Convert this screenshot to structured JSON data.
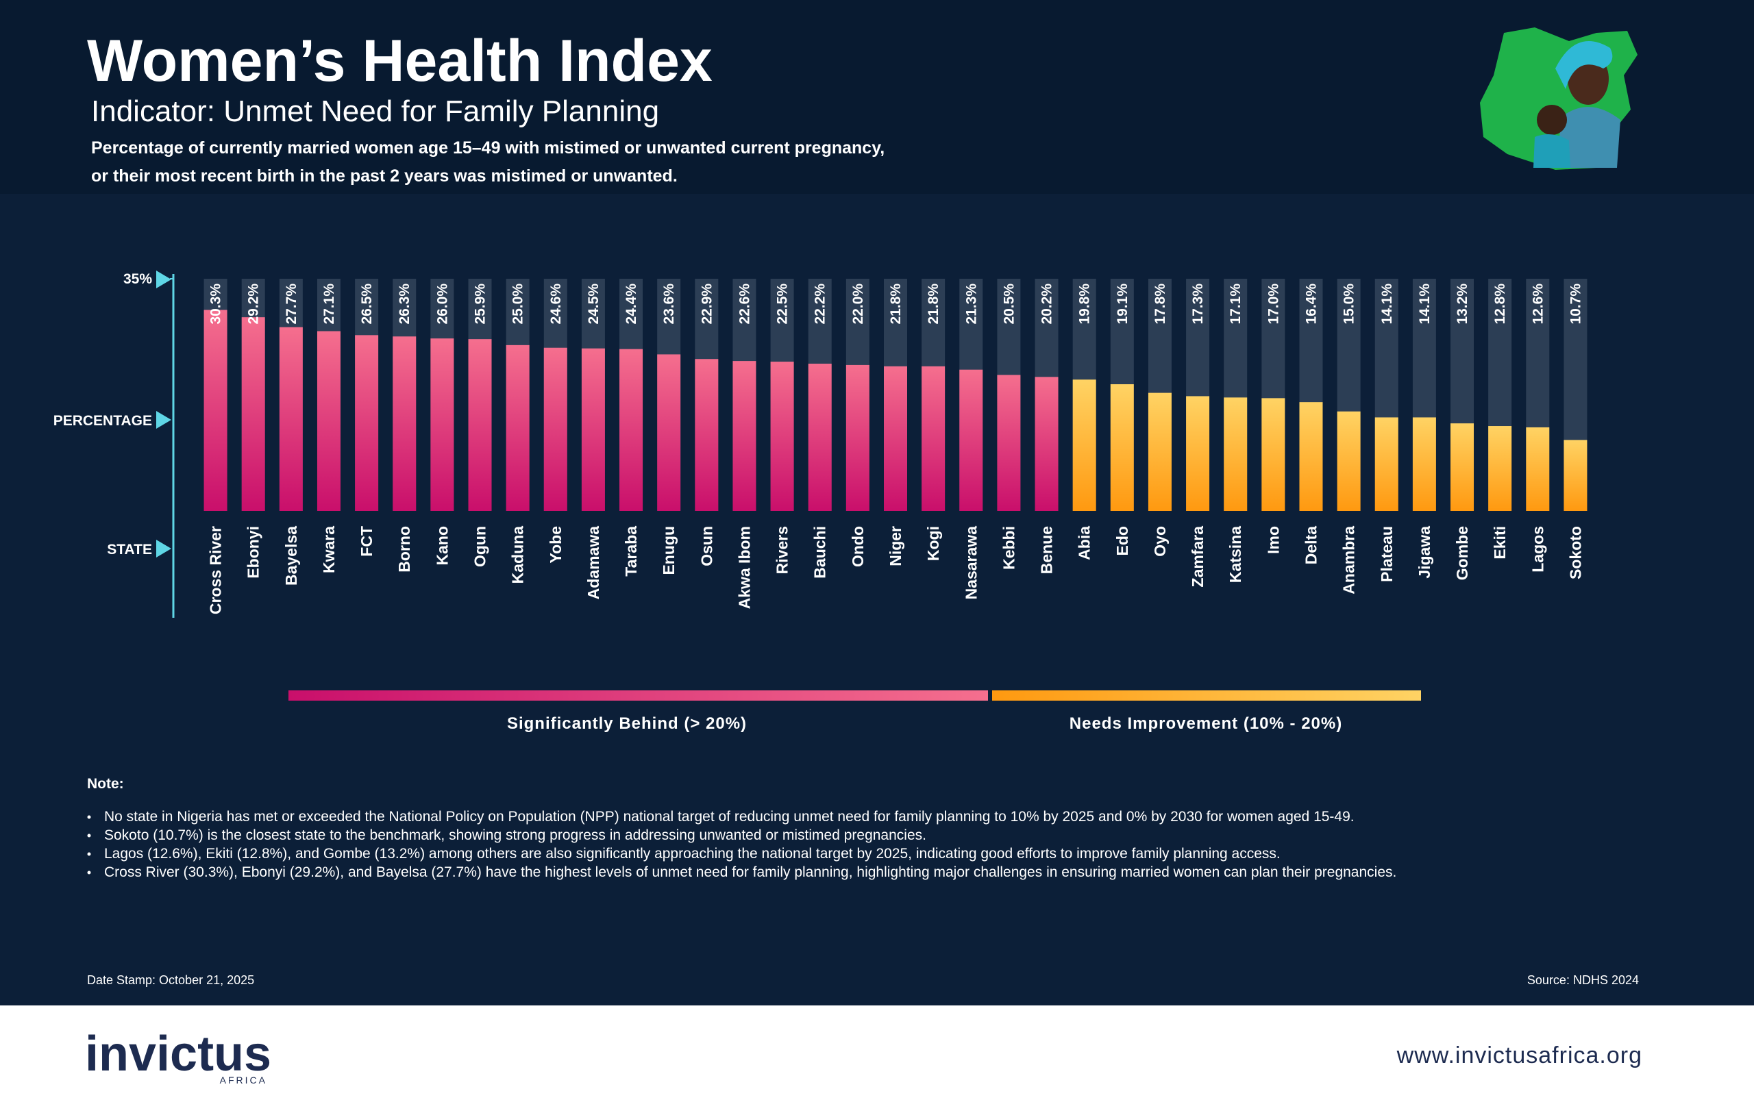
{
  "chart_data": {
    "type": "bar",
    "title": "Women’s Health Index",
    "subtitle": "Indicator: Unmet Need for Family Planning",
    "description": [
      "Percentage of currently married women age 15–49 with mistimed or unwanted current pregnancy,",
      "or their most recent birth in the past 2 years was mistimed or unwanted."
    ],
    "y_axis_label": "PERCENTAGE",
    "x_axis_label": "STATE",
    "ylim": [
      0,
      35
    ],
    "yticks": [
      {
        "value": 35,
        "label": "35%"
      }
    ],
    "categories": [
      "Cross River",
      "Ebonyi",
      "Bayelsa",
      "Kwara",
      "FCT",
      "Borno",
      "Kano",
      "Ogun",
      "Kaduna",
      "Yobe",
      "Adamawa",
      "Taraba",
      "Enugu",
      "Osun",
      "Akwa Ibom",
      "Rivers",
      "Bauchi",
      "Ondo",
      "Niger",
      "Kogi",
      "Nasarawa",
      "Kebbi",
      "Benue",
      "Abia",
      "Edo",
      "Oyo",
      "Zamfara",
      "Katsina",
      "Imo",
      "Delta",
      "Anambra",
      "Plateau",
      "Jigawa",
      "Gombe",
      "Ekiti",
      "Lagos",
      "Sokoto"
    ],
    "series": [
      {
        "name": "Significantly Behind (> 20%)",
        "color": [
          "#f56f8e",
          "#c90f6b"
        ],
        "values": [
          30.3,
          29.2,
          27.7,
          27.1,
          26.5,
          26.3,
          26.0,
          25.9,
          25.0,
          24.6,
          24.5,
          24.4,
          23.6,
          22.9,
          22.6,
          22.5,
          22.2,
          22.0,
          21.8,
          21.8,
          21.3,
          20.5,
          20.2,
          null,
          null,
          null,
          null,
          null,
          null,
          null,
          null,
          null,
          null,
          null,
          null,
          null,
          null
        ],
        "value_labels": [
          "30.3%",
          "29.2%",
          "27.7%",
          "27.1%",
          "26.5%",
          "26.3%",
          "26.0%",
          "25.9%",
          "25.0%",
          "24.6%",
          "24.5%",
          "24.4%",
          "23.6%",
          "22.9%",
          "22.6%",
          "22.5%",
          "22.2%",
          "22.0%",
          "21.8%",
          "21.8%",
          "21.3%",
          "20.5%",
          "20.2%",
          null,
          null,
          null,
          null,
          null,
          null,
          null,
          null,
          null,
          null,
          null,
          null,
          null,
          null
        ]
      },
      {
        "name": "Needs Improvement (10% - 20%)",
        "color": [
          "#ffd364",
          "#ff9910"
        ],
        "values": [
          null,
          null,
          null,
          null,
          null,
          null,
          null,
          null,
          null,
          null,
          null,
          null,
          null,
          null,
          null,
          null,
          null,
          null,
          null,
          null,
          null,
          null,
          null,
          19.8,
          19.1,
          17.8,
          17.3,
          17.1,
          17.0,
          16.4,
          15.0,
          14.1,
          14.1,
          13.2,
          12.8,
          12.6,
          10.7
        ],
        "value_labels": [
          null,
          null,
          null,
          null,
          null,
          null,
          null,
          null,
          null,
          null,
          null,
          null,
          null,
          null,
          null,
          null,
          null,
          null,
          null,
          null,
          null,
          null,
          null,
          "19.8%",
          "19.1%",
          "17.8%",
          "17.3%",
          "17.1%",
          "17.0%",
          "16.4%",
          "15.0%",
          "14.1%",
          "14.1%",
          "13.2%",
          "12.8%",
          "12.6%",
          "10.7%"
        ]
      }
    ]
  },
  "notes": {
    "heading": "Note:",
    "items": [
      "No state in Nigeria has met or exceeded the National Policy on Population (NPP) national target of reducing unmet need for family planning to 10% by 2025 and 0% by 2030 for women aged 15-49.",
      "Sokoto (10.7%) is the closest state to the benchmark, showing strong progress in addressing unwanted or mistimed pregnancies.",
      "Lagos (12.6%), Ekiti (12.8%), and Gombe (13.2%) among others are also significantly approaching the national target by 2025, indicating good efforts to improve family planning access.",
      "Cross River (30.3%), Ebonyi (29.2%), and Bayelsa (27.7%) have the highest levels of unmet need for family planning, highlighting major challenges in ensuring married women can plan their pregnancies."
    ]
  },
  "footer": {
    "date_stamp": "Date Stamp: October 21, 2025",
    "source": "Source: NDHS 2024",
    "brand": "invictus",
    "brand_sub": "AFRICA",
    "website": "www.invictusafrica.org"
  }
}
